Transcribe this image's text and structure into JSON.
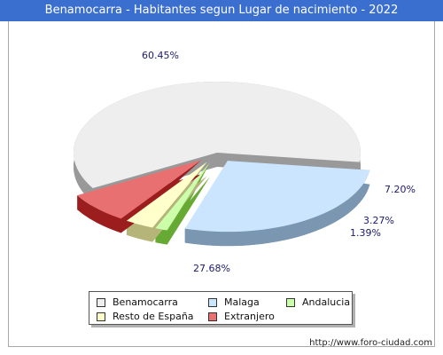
{
  "title": "Benamocarra - Habitantes segun Lugar de nacimiento - 2022",
  "footer": "http://www.foro-ciudad.com",
  "colors": {
    "title_bg": "#3a6fd0",
    "slice_top": [
      "#eeeeee",
      "#cce5ff",
      "#ccffaa",
      "#ffffcc",
      "#e87070"
    ],
    "slice_side": [
      "#999999",
      "#7a96b0",
      "#66aa33",
      "#b5b57a",
      "#9b1d1d"
    ]
  },
  "chart_data": {
    "type": "pie",
    "title": "Benamocarra - Habitantes segun Lugar de nacimiento - 2022",
    "categories": [
      "Benamocarra",
      "Malaga",
      "Andalucia",
      "Resto de España",
      "Extranjero"
    ],
    "values": [
      60.45,
      27.68,
      1.39,
      3.27,
      7.2
    ],
    "labels": [
      "60.45%",
      "27.68%",
      "1.39%",
      "3.27%",
      "7.20%"
    ],
    "legend_position": "bottom"
  }
}
